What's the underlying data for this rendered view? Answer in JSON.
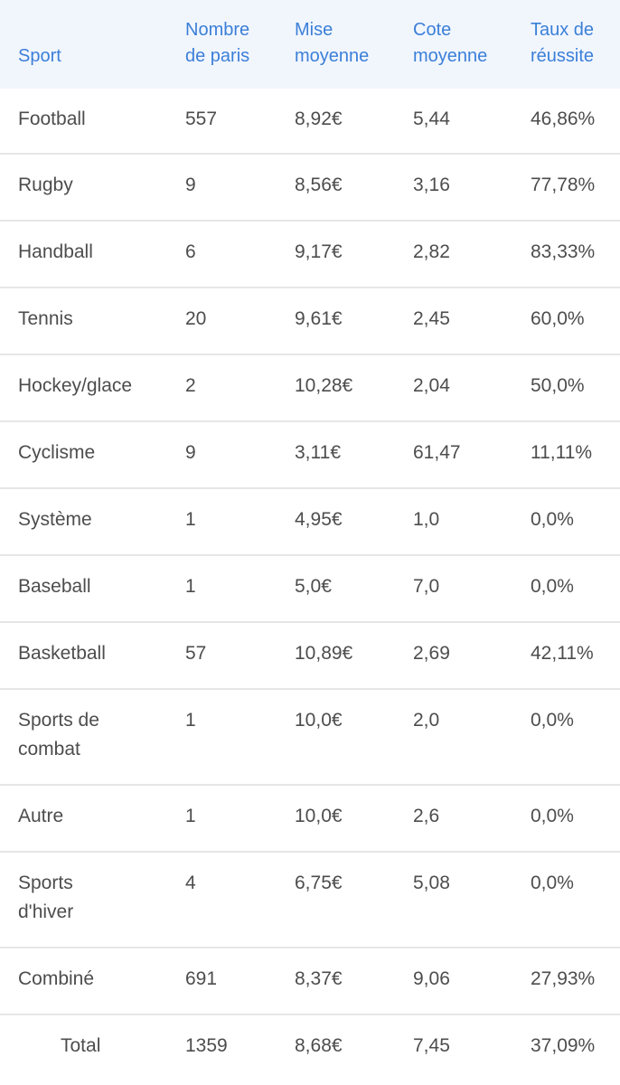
{
  "table": {
    "headers": {
      "sport": "Sport",
      "bets_line1": "Nombre",
      "bets_line2": "de paris",
      "stake_line1": "Mise",
      "stake_line2": "moyenne",
      "odds_line1": "Cote",
      "odds_line2": "moyenne",
      "rate_line1": "Taux de",
      "rate_line2": "réussite"
    },
    "rows": [
      {
        "sport": "Football",
        "bets": "557",
        "stake": "8,92€",
        "odds": "5,44",
        "rate": "46,86%"
      },
      {
        "sport": "Rugby",
        "bets": "9",
        "stake": "8,56€",
        "odds": "3,16",
        "rate": "77,78%"
      },
      {
        "sport": "Handball",
        "bets": "6",
        "stake": "9,17€",
        "odds": "2,82",
        "rate": "83,33%"
      },
      {
        "sport": "Tennis",
        "bets": "20",
        "stake": "9,61€",
        "odds": "2,45",
        "rate": "60,0%"
      },
      {
        "sport": "Hockey/glace",
        "bets": "2",
        "stake": "10,28€",
        "odds": "2,04",
        "rate": "50,0%"
      },
      {
        "sport": "Cyclisme",
        "bets": "9",
        "stake": "3,11€",
        "odds": "61,47",
        "rate": "11,11%"
      },
      {
        "sport": "Système",
        "bets": "1",
        "stake": "4,95€",
        "odds": "1,0",
        "rate": "0,0%"
      },
      {
        "sport": "Baseball",
        "bets": "1",
        "stake": "5,0€",
        "odds": "7,0",
        "rate": "0,0%"
      },
      {
        "sport": "Basketball",
        "bets": "57",
        "stake": "10,89€",
        "odds": "2,69",
        "rate": "42,11%"
      },
      {
        "sport_line1": "Sports de",
        "sport_line2": "combat",
        "bets": "1",
        "stake": "10,0€",
        "odds": "2,0",
        "rate": "0,0%"
      },
      {
        "sport": "Autre",
        "bets": "1",
        "stake": "10,0€",
        "odds": "2,6",
        "rate": "0,0%"
      },
      {
        "sport_line1": "Sports",
        "sport_line2": "d'hiver",
        "bets": "4",
        "stake": "6,75€",
        "odds": "5,08",
        "rate": "0,0%"
      },
      {
        "sport": "Combiné",
        "bets": "691",
        "stake": "8,37€",
        "odds": "9,06",
        "rate": "27,93%"
      }
    ],
    "total": {
      "label": "Total",
      "bets": "1359",
      "stake": "8,68€",
      "odds": "7,45",
      "rate": "37,09%"
    }
  },
  "colors": {
    "header_background": "#f1f6fd",
    "header_text": "#3b7fd8",
    "body_text": "#4d4d4d",
    "row_divider": "#e6e6e6"
  }
}
